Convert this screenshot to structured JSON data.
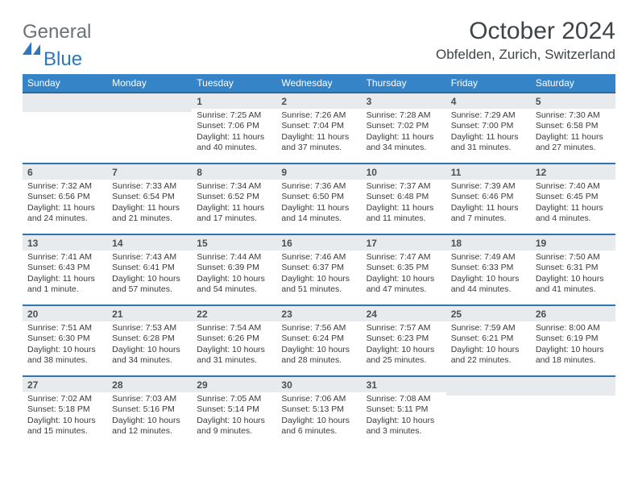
{
  "brand": {
    "primary": "General",
    "secondary": "Blue"
  },
  "header": {
    "title": "October 2024",
    "location": "Obfelden, Zurich, Switzerland"
  },
  "colors": {
    "header_bg": "#3684c8",
    "header_border": "#2a6aa3",
    "row_sep": "#2f74b5",
    "day_header_bg": "#e8ebed",
    "brand_gray": "#6b7176",
    "brand_blue": "#2d78bd"
  },
  "weekdays": [
    "Sunday",
    "Monday",
    "Tuesday",
    "Wednesday",
    "Thursday",
    "Friday",
    "Saturday"
  ],
  "weeks": [
    [
      null,
      null,
      {
        "num": "1",
        "sunrise": "Sunrise: 7:25 AM",
        "sunset": "Sunset: 7:06 PM",
        "daylight": "Daylight: 11 hours and 40 minutes."
      },
      {
        "num": "2",
        "sunrise": "Sunrise: 7:26 AM",
        "sunset": "Sunset: 7:04 PM",
        "daylight": "Daylight: 11 hours and 37 minutes."
      },
      {
        "num": "3",
        "sunrise": "Sunrise: 7:28 AM",
        "sunset": "Sunset: 7:02 PM",
        "daylight": "Daylight: 11 hours and 34 minutes."
      },
      {
        "num": "4",
        "sunrise": "Sunrise: 7:29 AM",
        "sunset": "Sunset: 7:00 PM",
        "daylight": "Daylight: 11 hours and 31 minutes."
      },
      {
        "num": "5",
        "sunrise": "Sunrise: 7:30 AM",
        "sunset": "Sunset: 6:58 PM",
        "daylight": "Daylight: 11 hours and 27 minutes."
      }
    ],
    [
      {
        "num": "6",
        "sunrise": "Sunrise: 7:32 AM",
        "sunset": "Sunset: 6:56 PM",
        "daylight": "Daylight: 11 hours and 24 minutes."
      },
      {
        "num": "7",
        "sunrise": "Sunrise: 7:33 AM",
        "sunset": "Sunset: 6:54 PM",
        "daylight": "Daylight: 11 hours and 21 minutes."
      },
      {
        "num": "8",
        "sunrise": "Sunrise: 7:34 AM",
        "sunset": "Sunset: 6:52 PM",
        "daylight": "Daylight: 11 hours and 17 minutes."
      },
      {
        "num": "9",
        "sunrise": "Sunrise: 7:36 AM",
        "sunset": "Sunset: 6:50 PM",
        "daylight": "Daylight: 11 hours and 14 minutes."
      },
      {
        "num": "10",
        "sunrise": "Sunrise: 7:37 AM",
        "sunset": "Sunset: 6:48 PM",
        "daylight": "Daylight: 11 hours and 11 minutes."
      },
      {
        "num": "11",
        "sunrise": "Sunrise: 7:39 AM",
        "sunset": "Sunset: 6:46 PM",
        "daylight": "Daylight: 11 hours and 7 minutes."
      },
      {
        "num": "12",
        "sunrise": "Sunrise: 7:40 AM",
        "sunset": "Sunset: 6:45 PM",
        "daylight": "Daylight: 11 hours and 4 minutes."
      }
    ],
    [
      {
        "num": "13",
        "sunrise": "Sunrise: 7:41 AM",
        "sunset": "Sunset: 6:43 PM",
        "daylight": "Daylight: 11 hours and 1 minute."
      },
      {
        "num": "14",
        "sunrise": "Sunrise: 7:43 AM",
        "sunset": "Sunset: 6:41 PM",
        "daylight": "Daylight: 10 hours and 57 minutes."
      },
      {
        "num": "15",
        "sunrise": "Sunrise: 7:44 AM",
        "sunset": "Sunset: 6:39 PM",
        "daylight": "Daylight: 10 hours and 54 minutes."
      },
      {
        "num": "16",
        "sunrise": "Sunrise: 7:46 AM",
        "sunset": "Sunset: 6:37 PM",
        "daylight": "Daylight: 10 hours and 51 minutes."
      },
      {
        "num": "17",
        "sunrise": "Sunrise: 7:47 AM",
        "sunset": "Sunset: 6:35 PM",
        "daylight": "Daylight: 10 hours and 47 minutes."
      },
      {
        "num": "18",
        "sunrise": "Sunrise: 7:49 AM",
        "sunset": "Sunset: 6:33 PM",
        "daylight": "Daylight: 10 hours and 44 minutes."
      },
      {
        "num": "19",
        "sunrise": "Sunrise: 7:50 AM",
        "sunset": "Sunset: 6:31 PM",
        "daylight": "Daylight: 10 hours and 41 minutes."
      }
    ],
    [
      {
        "num": "20",
        "sunrise": "Sunrise: 7:51 AM",
        "sunset": "Sunset: 6:30 PM",
        "daylight": "Daylight: 10 hours and 38 minutes."
      },
      {
        "num": "21",
        "sunrise": "Sunrise: 7:53 AM",
        "sunset": "Sunset: 6:28 PM",
        "daylight": "Daylight: 10 hours and 34 minutes."
      },
      {
        "num": "22",
        "sunrise": "Sunrise: 7:54 AM",
        "sunset": "Sunset: 6:26 PM",
        "daylight": "Daylight: 10 hours and 31 minutes."
      },
      {
        "num": "23",
        "sunrise": "Sunrise: 7:56 AM",
        "sunset": "Sunset: 6:24 PM",
        "daylight": "Daylight: 10 hours and 28 minutes."
      },
      {
        "num": "24",
        "sunrise": "Sunrise: 7:57 AM",
        "sunset": "Sunset: 6:23 PM",
        "daylight": "Daylight: 10 hours and 25 minutes."
      },
      {
        "num": "25",
        "sunrise": "Sunrise: 7:59 AM",
        "sunset": "Sunset: 6:21 PM",
        "daylight": "Daylight: 10 hours and 22 minutes."
      },
      {
        "num": "26",
        "sunrise": "Sunrise: 8:00 AM",
        "sunset": "Sunset: 6:19 PM",
        "daylight": "Daylight: 10 hours and 18 minutes."
      }
    ],
    [
      {
        "num": "27",
        "sunrise": "Sunrise: 7:02 AM",
        "sunset": "Sunset: 5:18 PM",
        "daylight": "Daylight: 10 hours and 15 minutes."
      },
      {
        "num": "28",
        "sunrise": "Sunrise: 7:03 AM",
        "sunset": "Sunset: 5:16 PM",
        "daylight": "Daylight: 10 hours and 12 minutes."
      },
      {
        "num": "29",
        "sunrise": "Sunrise: 7:05 AM",
        "sunset": "Sunset: 5:14 PM",
        "daylight": "Daylight: 10 hours and 9 minutes."
      },
      {
        "num": "30",
        "sunrise": "Sunrise: 7:06 AM",
        "sunset": "Sunset: 5:13 PM",
        "daylight": "Daylight: 10 hours and 6 minutes."
      },
      {
        "num": "31",
        "sunrise": "Sunrise: 7:08 AM",
        "sunset": "Sunset: 5:11 PM",
        "daylight": "Daylight: 10 hours and 3 minutes."
      },
      null,
      null
    ]
  ]
}
